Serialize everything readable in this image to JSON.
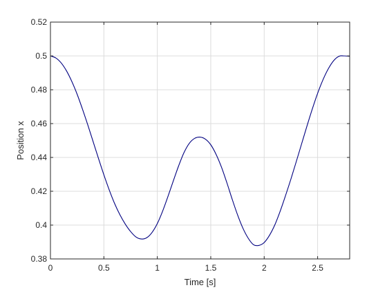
{
  "chart_data": {
    "type": "line",
    "title": "",
    "xlabel": "Time [s]",
    "ylabel": "Position x",
    "xlim": [
      0,
      2.8
    ],
    "ylim": [
      0.38,
      0.52
    ],
    "xticks": [
      0,
      0.5,
      1,
      1.5,
      2,
      2.5
    ],
    "xtick_labels": [
      "0",
      "0.5",
      "1",
      "1.5",
      "2",
      "2.5"
    ],
    "yticks": [
      0.38,
      0.4,
      0.42,
      0.44,
      0.46,
      0.48,
      0.5,
      0.52
    ],
    "ytick_labels": [
      "0.38",
      "0.4",
      "0.42",
      "0.44",
      "0.46",
      "0.48",
      "0.5",
      "0.52"
    ],
    "grid": true,
    "series": [
      {
        "color": "#000080",
        "x": [
          0,
          0.05,
          0.1,
          0.15,
          0.2,
          0.25,
          0.3,
          0.35,
          0.4,
          0.45,
          0.5,
          0.55,
          0.6,
          0.65,
          0.7,
          0.75,
          0.8,
          0.85,
          0.9,
          0.95,
          1.0,
          1.05,
          1.1,
          1.15,
          1.2,
          1.25,
          1.3,
          1.35,
          1.4,
          1.45,
          1.5,
          1.55,
          1.6,
          1.65,
          1.7,
          1.75,
          1.8,
          1.85,
          1.9,
          1.95,
          2.0,
          2.05,
          2.1,
          2.15,
          2.2,
          2.25,
          2.3,
          2.35,
          2.4,
          2.45,
          2.5,
          2.55,
          2.6,
          2.65,
          2.7,
          2.75,
          2.8
        ],
        "y": [
          0.5,
          0.4988,
          0.4959,
          0.4912,
          0.4849,
          0.4773,
          0.4685,
          0.4591,
          0.4492,
          0.4393,
          0.4297,
          0.4208,
          0.4128,
          0.4061,
          0.4006,
          0.3962,
          0.393,
          0.3918,
          0.3925,
          0.3956,
          0.4009,
          0.4083,
          0.417,
          0.4262,
          0.4351,
          0.4429,
          0.4484,
          0.4513,
          0.452,
          0.4508,
          0.4475,
          0.4418,
          0.4343,
          0.4252,
          0.4154,
          0.4062,
          0.3983,
          0.3923,
          0.3884,
          0.388,
          0.3897,
          0.394,
          0.4002,
          0.4083,
          0.4175,
          0.4272,
          0.4375,
          0.448,
          0.4585,
          0.4686,
          0.4779,
          0.4859,
          0.4924,
          0.4972,
          0.4998,
          0.5,
          0.4998
        ]
      }
    ]
  }
}
